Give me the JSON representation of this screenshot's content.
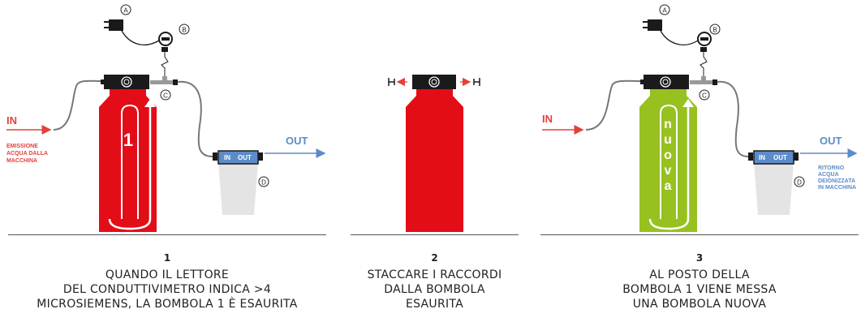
{
  "colors": {
    "red": "#e30d18",
    "green": "#97c11f",
    "blue_accent": "#5b8cc8",
    "text_red": "#e4413a",
    "dark": "#1a1a1a"
  },
  "markers": {
    "a": "A",
    "b": "B",
    "c": "C",
    "d": "D"
  },
  "panel1": {
    "in_label": "IN",
    "in_caption_lines": [
      "EMISSIONE",
      "ACQUA DALLA",
      "MACCHINA"
    ],
    "bottle_number": "1",
    "cup_in": "IN",
    "cup_out": "OUT",
    "out_label": "OUT"
  },
  "panel3": {
    "in_label": "IN",
    "bottle_letters": [
      "n",
      "u",
      "o",
      "v",
      "a"
    ],
    "cup_in": "IN",
    "cup_out": "OUT",
    "out_label": "OUT",
    "out_caption_lines": [
      "RITORNO",
      "ACQUA",
      "DEIONIZZATA",
      "IN MACCHINA"
    ]
  },
  "steps": [
    {
      "number": "1",
      "lines": [
        "QUANDO IL LETTORE",
        "DEL CONDUTTIVIMETRO INDICA >4",
        "MICROSIEMENS, LA BOMBOLA 1 È ESAURITA"
      ]
    },
    {
      "number": "2",
      "lines": [
        "STACCARE I RACCORDI",
        "DALLA BOMBOLA",
        "ESAURITA"
      ]
    },
    {
      "number": "3",
      "lines": [
        "AL POSTO DELLA",
        "BOMBOLA 1 VIENE MESSA",
        "UNA BOMBOLA NUOVA"
      ]
    }
  ]
}
